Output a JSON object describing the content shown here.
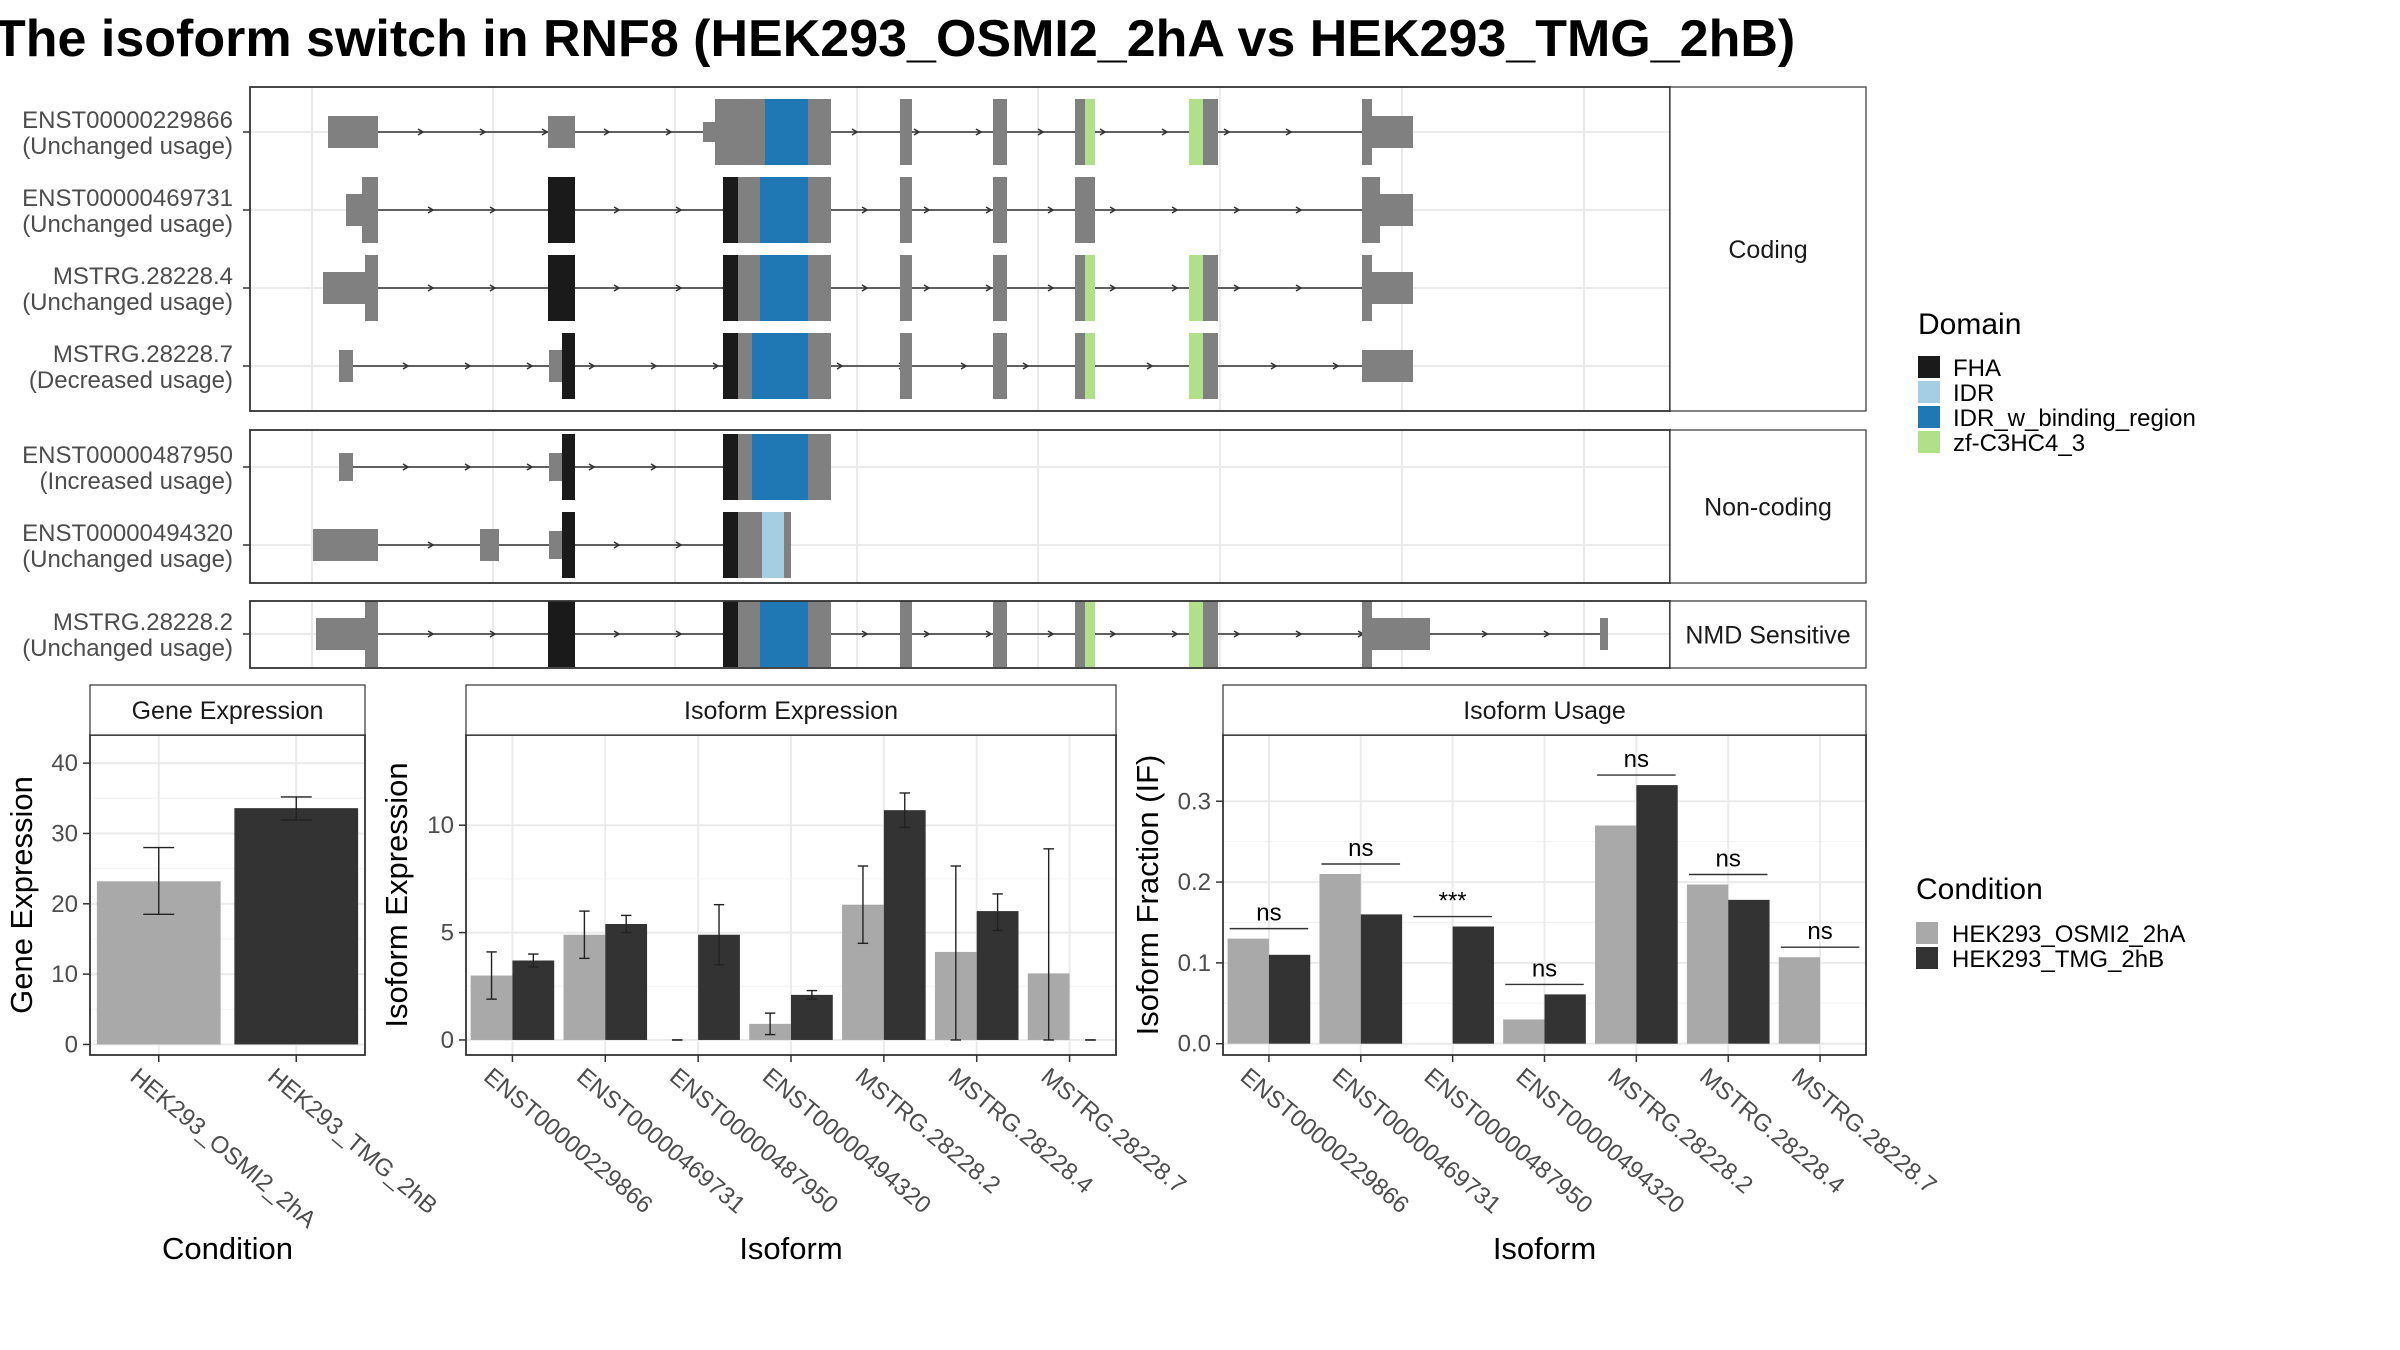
{
  "title": "The isoform switch in RNF8 (HEK293_OSMI2_2hA vs HEK293_TMG_2hB)",
  "colors": {
    "exon": "#808080",
    "FHA": "#1a1a1a",
    "IDR": "#a6cee3",
    "IDR_w_binding_region": "#1f78b4",
    "zf-C3HC4_3": "#b2df8a",
    "cond1": "#a9a9a9",
    "cond2": "#333333"
  },
  "legend_domain": {
    "title": "Domain",
    "entries": [
      {
        "label": "FHA",
        "color": "#1a1a1a"
      },
      {
        "label": "IDR",
        "color": "#a6cee3"
      },
      {
        "label": "IDR_w_binding_region",
        "color": "#1f78b4"
      },
      {
        "label": "zf-C3HC4_3",
        "color": "#b2df8a"
      }
    ]
  },
  "legend_condition": {
    "title": "Condition",
    "entries": [
      {
        "label": "HEK293_OSMI2_2hA",
        "color": "#a9a9a9"
      },
      {
        "label": "HEK293_TMG_2hB",
        "color": "#333333"
      }
    ]
  },
  "structure_panels": [
    {
      "label": "Coding",
      "isoforms": [
        {
          "name": "ENST00000229866",
          "usage": "(Unchanged usage)"
        },
        {
          "name": "ENST00000469731",
          "usage": "(Unchanged usage)"
        },
        {
          "name": "MSTRG.28228.4",
          "usage": "(Unchanged usage)"
        },
        {
          "name": "MSTRG.28228.7",
          "usage": "(Decreased usage)"
        }
      ]
    },
    {
      "label": "Non-coding",
      "isoforms": [
        {
          "name": "ENST00000487950",
          "usage": "(Increased usage)"
        },
        {
          "name": "ENST00000494320",
          "usage": "(Unchanged usage)"
        }
      ]
    },
    {
      "label": "NMD Sensitive",
      "isoforms": [
        {
          "name": "MSTRG.28228.2",
          "usage": "(Unchanged usage)"
        }
      ]
    }
  ],
  "chart_data": [
    {
      "type": "bar",
      "title": "Gene Expression",
      "xlabel": "Condition",
      "ylabel": "Gene Expression",
      "categories": [
        "HEK293_OSMI2_2hA",
        "HEK293_TMG_2hB"
      ],
      "values": [
        23.2,
        33.6
      ],
      "err_low": [
        18.5,
        31.9
      ],
      "err_high": [
        28.0,
        35.2
      ],
      "ylim": [
        -1.5,
        44
      ],
      "yticks": [
        0,
        10,
        20,
        30,
        40
      ],
      "grid": true
    },
    {
      "type": "bar",
      "title": "Isoform Expression",
      "xlabel": "Isoform",
      "ylabel": "Isoform Expression",
      "categories": [
        "ENST00000229866",
        "ENST00000469731",
        "ENST00000487950",
        "ENST00000494320",
        "MSTRG.28228.2",
        "MSTRG.28228.4",
        "MSTRG.28228.7"
      ],
      "series": [
        {
          "name": "HEK293_OSMI2_2hA",
          "values": [
            3.0,
            4.9,
            0.0,
            0.75,
            6.3,
            4.1,
            3.1
          ],
          "err_low": [
            1.9,
            3.8,
            0.0,
            0.25,
            4.5,
            0.0,
            0.0
          ],
          "err_high": [
            4.1,
            6.0,
            0.0,
            1.25,
            8.1,
            8.1,
            8.9
          ]
        },
        {
          "name": "HEK293_TMG_2hB",
          "values": [
            3.7,
            5.4,
            4.9,
            2.1,
            10.7,
            6.0,
            0.0
          ],
          "err_low": [
            3.4,
            5.0,
            3.5,
            1.9,
            9.9,
            5.1,
            0.0
          ],
          "err_high": [
            4.0,
            5.8,
            6.3,
            2.3,
            11.5,
            6.8,
            0.0
          ]
        }
      ],
      "ylim": [
        -0.7,
        14.2
      ],
      "yticks": [
        0,
        5,
        10
      ],
      "grid": true
    },
    {
      "type": "bar",
      "title": "Isoform Usage",
      "xlabel": "Isoform",
      "ylabel": "Isoform Fraction (IF)",
      "categories": [
        "ENST00000229866",
        "ENST00000469731",
        "ENST00000487950",
        "ENST00000494320",
        "MSTRG.28228.2",
        "MSTRG.28228.4",
        "MSTRG.28228.7"
      ],
      "series": [
        {
          "name": "HEK293_OSMI2_2hA",
          "values": [
            0.13,
            0.21,
            0.0,
            0.03,
            0.27,
            0.197,
            0.107
          ]
        },
        {
          "name": "HEK293_TMG_2hB",
          "values": [
            0.11,
            0.16,
            0.145,
            0.061,
            0.32,
            0.178,
            0.0
          ]
        }
      ],
      "significance": [
        "ns",
        "ns",
        "***",
        "ns",
        "ns",
        "ns",
        "ns"
      ],
      "ylim": [
        -0.014,
        0.382
      ],
      "yticks": [
        0.0,
        0.1,
        0.2,
        0.3
      ],
      "ytick_labels": [
        "0.0",
        "0.1",
        "0.2",
        "0.3"
      ],
      "grid": true
    }
  ]
}
